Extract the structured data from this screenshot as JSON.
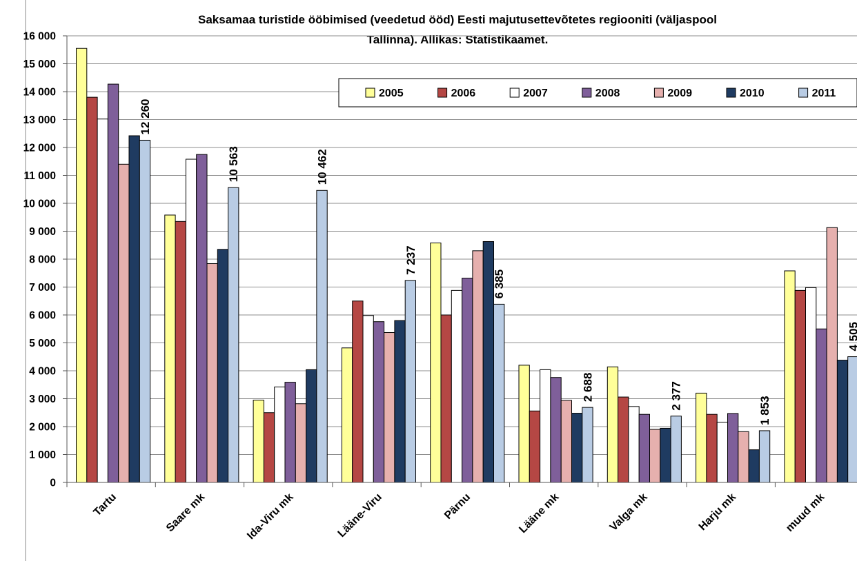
{
  "chart_data": {
    "type": "bar",
    "title_lines": [
      "Saksamaa turistide ööbimised (veedetud ööd) Eesti majutusettevõtetes regiooniti (väljaspool",
      "Tallinna). Allikas: Statistikaamet."
    ],
    "categories": [
      "Tartu",
      "Saare mk",
      "Ida-Viru mk",
      "Lääne-Viru",
      "Pärnu",
      "Lääne mk",
      "Valga mk",
      "Harju mk",
      "muud mk"
    ],
    "ylim": [
      0,
      16000
    ],
    "yticks": [
      {
        "value": 0,
        "label": "0"
      },
      {
        "value": 1000,
        "label": "1 000"
      },
      {
        "value": 2000,
        "label": "2 000"
      },
      {
        "value": 3000,
        "label": "3 000"
      },
      {
        "value": 4000,
        "label": "4 000"
      },
      {
        "value": 5000,
        "label": "5 000"
      },
      {
        "value": 6000,
        "label": "6 000"
      },
      {
        "value": 7000,
        "label": "7 000"
      },
      {
        "value": 8000,
        "label": "8 000"
      },
      {
        "value": 9000,
        "label": "9 000"
      },
      {
        "value": 10000,
        "label": "10 000"
      },
      {
        "value": 11000,
        "label": "11 000"
      },
      {
        "value": 12000,
        "label": "12 000"
      },
      {
        "value": 13000,
        "label": "13 000"
      },
      {
        "value": 14000,
        "label": "14 000"
      },
      {
        "value": 15000,
        "label": "15 000"
      },
      {
        "value": 16000,
        "label": "16 000"
      }
    ],
    "grid": true,
    "legend_position": "top-right",
    "series": [
      {
        "name": "2005",
        "color": "#FFFF99",
        "values": [
          15550,
          9580,
          2950,
          4820,
          8580,
          4200,
          4140,
          3200,
          7580
        ]
      },
      {
        "name": "2006",
        "color": "#B54744",
        "values": [
          13800,
          9350,
          2500,
          6500,
          6000,
          2560,
          3060,
          2440,
          6880
        ]
      },
      {
        "name": "2007",
        "color": "#FFFFFF",
        "values": [
          13020,
          11580,
          3420,
          5980,
          6880,
          4040,
          2720,
          2160,
          6980
        ]
      },
      {
        "name": "2008",
        "color": "#7F5F9A",
        "values": [
          14270,
          11750,
          3590,
          5760,
          7320,
          3760,
          2440,
          2470,
          5500
        ]
      },
      {
        "name": "2009",
        "color": "#E6B0AE",
        "values": [
          11400,
          7840,
          2820,
          5370,
          8300,
          2940,
          1900,
          1820,
          9130
        ]
      },
      {
        "name": "2010",
        "color": "#1F3B61",
        "values": [
          12420,
          8350,
          4040,
          5800,
          8630,
          2480,
          1940,
          1170,
          4380
        ]
      },
      {
        "name": "2011",
        "color": "#B9CCE4",
        "values": [
          12260,
          10563,
          10462,
          7237,
          6385,
          2688,
          2377,
          1853,
          4505
        ]
      }
    ],
    "data_labels": {
      "series": "2011",
      "labels": [
        "12 260",
        "10 563",
        "10 462",
        "7 237",
        "6 385",
        "2 688",
        "2 377",
        "1 853",
        "4 505"
      ]
    }
  }
}
